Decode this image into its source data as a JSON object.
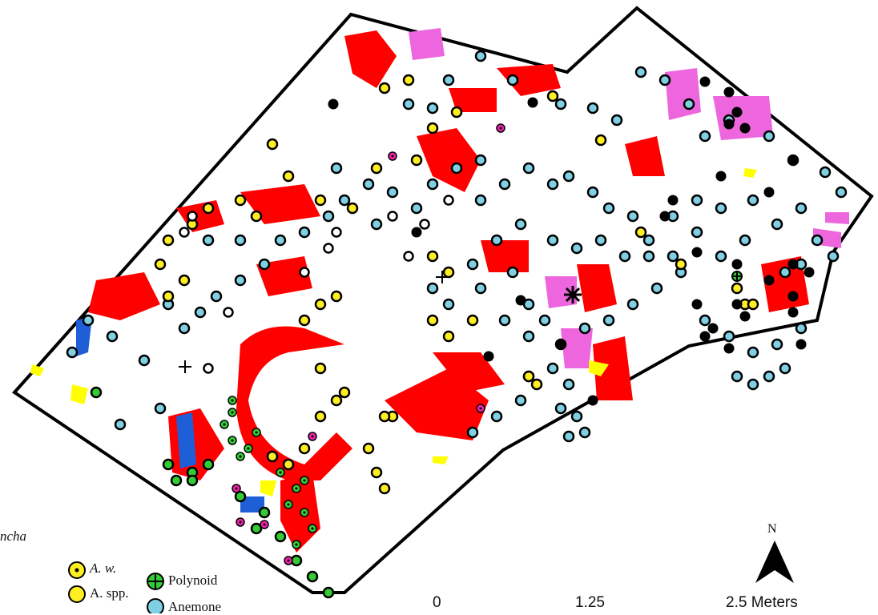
{
  "legend": {
    "fragment": "ncha",
    "items": [
      {
        "label": "A. w.",
        "icon": "yellow-dot-marker-icon"
      },
      {
        "label": "A. spp.",
        "icon": "yellow-circle-marker-icon"
      },
      {
        "label": "Polynoid",
        "icon": "green-crossed-circle-icon"
      },
      {
        "label": "Anemone",
        "icon": "light-blue-circle-icon"
      }
    ]
  },
  "scale_bar": {
    "labels": [
      "0",
      "1.25",
      "2.5 Meters"
    ]
  },
  "north_arrow": {
    "label": "N"
  },
  "colors": {
    "boundary": "#000000",
    "red_patch": "#ff0000",
    "pink_patch": "#ee66dd",
    "yellow_patch": "#ffff00",
    "blue_patch": "#1e5fd8",
    "anemone": "#7fd0e3",
    "yellow_marker": "#ffee22",
    "green_marker": "#33cc33",
    "magenta_marker": "#ee22aa",
    "black_marker": "#000000"
  }
}
